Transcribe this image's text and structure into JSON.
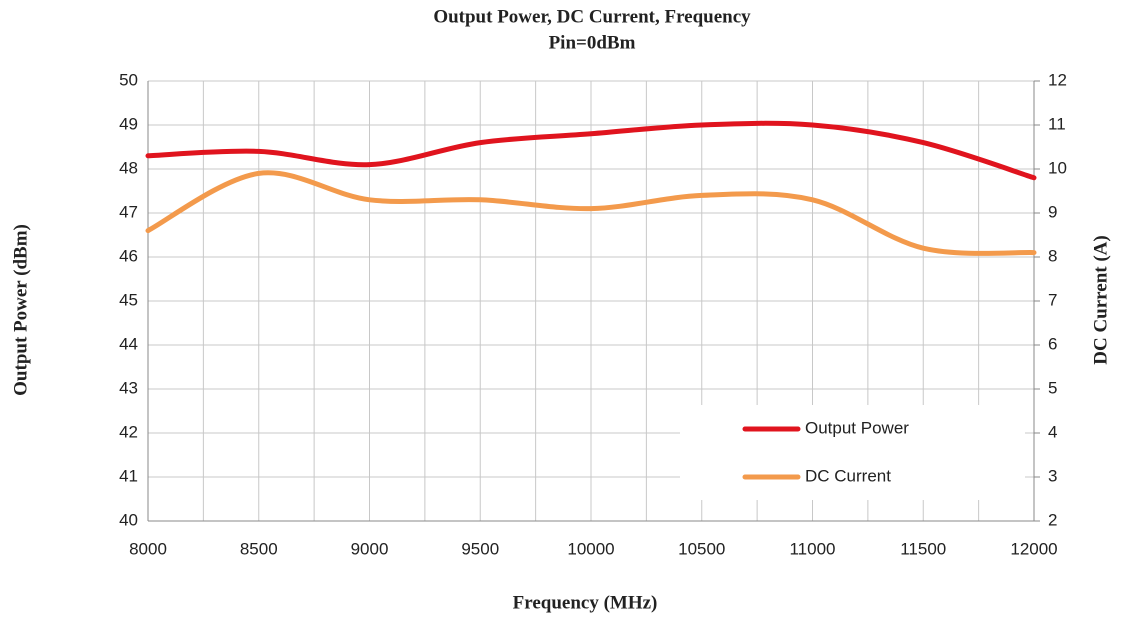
{
  "chart_data": {
    "type": "line",
    "title": "Output Power, DC Current, Frequency",
    "subtitle": "Pin=0dBm",
    "x_label": "Frequency (MHz)",
    "y_label": "Output Power (dBm)",
    "y2_label": "DC Current (A)",
    "x": [
      8000,
      8500,
      9000,
      9500,
      10000,
      10500,
      11000,
      11500,
      12000
    ],
    "series": [
      {
        "name": "Output Power",
        "color": "#e0141e",
        "values": [
          48.3,
          48.4,
          48.1,
          48.6,
          48.8,
          49.0,
          49.0,
          48.6,
          47.8
        ]
      },
      {
        "name": "DC Current",
        "color": "#f39a4c",
        "axis": "y2",
        "values": [
          8.6,
          9.9,
          9.3,
          9.3,
          9.1,
          9.4,
          9.3,
          8.2,
          8.1
        ]
      }
    ],
    "xlim": [
      8000,
      12000
    ],
    "xticks": [
      8000,
      8500,
      9000,
      9500,
      10000,
      10500,
      11000,
      11500,
      12000
    ],
    "xminorticks": [
      8250,
      8750,
      9250,
      9750,
      10250,
      10750,
      11250,
      11750
    ],
    "ylim": [
      40,
      50
    ],
    "yticks": [
      40,
      41,
      42,
      43,
      44,
      45,
      46,
      47,
      48,
      49,
      50
    ],
    "y2lim": [
      2,
      12
    ],
    "y2ticks": [
      2,
      3,
      4,
      5,
      6,
      7,
      8,
      9,
      10,
      11,
      12
    ],
    "grid": true,
    "legend": "lower right"
  }
}
